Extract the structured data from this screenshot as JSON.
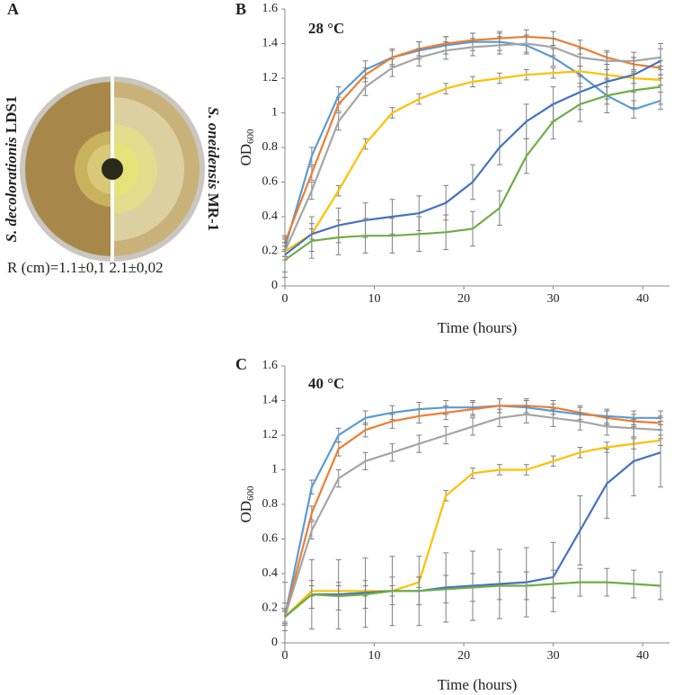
{
  "panel_a": {
    "label": "A",
    "left_species": "S. decolorationis",
    "left_strain": "LDS1",
    "right_species": "S. oneidensis",
    "right_strain": "MR-1",
    "radius_text": "R (cm)=1.1±0,1 2.1±0,02"
  },
  "chart_data": [
    {
      "type": "line",
      "panel_label": "B",
      "annotation": "28 °C",
      "xlabel": "Time (hours)",
      "ylabel": "OD",
      "ylabel_subscript": "600",
      "x": [
        0,
        3,
        6,
        9,
        12,
        15,
        18,
        21,
        24,
        27,
        30,
        33,
        36,
        39,
        42
      ],
      "xlim": [
        0,
        43
      ],
      "xticks": [
        0,
        10,
        20,
        30,
        40
      ],
      "ylim": [
        0,
        1.6
      ],
      "yticks": [
        0,
        0.2,
        0.4,
        0.6,
        0.8,
        1,
        1.2,
        1.4,
        1.6
      ],
      "error_color": "#7f7f7f",
      "series": [
        {
          "color": "#5b9bd5",
          "error": 0.05,
          "values": [
            0.22,
            0.75,
            1.1,
            1.25,
            1.32,
            1.36,
            1.39,
            1.41,
            1.41,
            1.39,
            1.32,
            1.22,
            1.1,
            1.02,
            1.07
          ]
        },
        {
          "color": "#ed7d31",
          "error": 0.04,
          "values": [
            0.25,
            0.65,
            1.05,
            1.22,
            1.32,
            1.37,
            1.4,
            1.42,
            1.43,
            1.44,
            1.43,
            1.38,
            1.32,
            1.28,
            1.26
          ]
        },
        {
          "color": "#a5a5a5",
          "error": 0.05,
          "values": [
            0.2,
            0.55,
            0.95,
            1.15,
            1.26,
            1.32,
            1.36,
            1.38,
            1.39,
            1.4,
            1.38,
            1.32,
            1.3,
            1.3,
            1.32
          ]
        },
        {
          "color": "#ffc000",
          "error": 0.03,
          "values": [
            0.2,
            0.3,
            0.55,
            0.82,
            1,
            1.08,
            1.14,
            1.18,
            1.2,
            1.22,
            1.23,
            1.24,
            1.22,
            1.2,
            1.19
          ]
        },
        {
          "color": "#4472c4",
          "error": 0.1,
          "values": [
            0.18,
            0.3,
            0.35,
            0.38,
            0.4,
            0.42,
            0.48,
            0.6,
            0.8,
            0.95,
            1.05,
            1.12,
            1.18,
            1.22,
            1.3
          ]
        },
        {
          "color": "#70ad47",
          "error": 0.1,
          "values": [
            0.15,
            0.26,
            0.28,
            0.29,
            0.29,
            0.3,
            0.31,
            0.33,
            0.45,
            0.75,
            0.95,
            1.05,
            1.1,
            1.13,
            1.15
          ]
        }
      ]
    },
    {
      "type": "line",
      "panel_label": "C",
      "annotation": "40 °C",
      "xlabel": "Time (hours)",
      "ylabel": "OD",
      "ylabel_subscript": "600",
      "x": [
        0,
        3,
        6,
        9,
        12,
        15,
        18,
        21,
        24,
        27,
        30,
        33,
        36,
        39,
        42
      ],
      "xlim": [
        0,
        43
      ],
      "xticks": [
        0,
        10,
        20,
        30,
        40
      ],
      "ylim": [
        0,
        1.6
      ],
      "yticks": [
        0,
        0.2,
        0.4,
        0.6,
        0.8,
        1,
        1.2,
        1.4,
        1.6
      ],
      "error_color": "#7f7f7f",
      "series": [
        {
          "color": "#5b9bd5",
          "error": 0.04,
          "values": [
            0.15,
            0.9,
            1.2,
            1.3,
            1.33,
            1.35,
            1.36,
            1.36,
            1.37,
            1.36,
            1.34,
            1.32,
            1.31,
            1.3,
            1.3
          ]
        },
        {
          "color": "#ed7d31",
          "error": 0.04,
          "values": [
            0.15,
            0.75,
            1.12,
            1.23,
            1.28,
            1.31,
            1.33,
            1.35,
            1.37,
            1.37,
            1.36,
            1.33,
            1.3,
            1.28,
            1.27
          ]
        },
        {
          "color": "#a5a5a5",
          "error": 0.05,
          "values": [
            0.15,
            0.65,
            0.95,
            1.05,
            1.1,
            1.15,
            1.2,
            1.25,
            1.3,
            1.32,
            1.3,
            1.28,
            1.25,
            1.24,
            1.23
          ]
        },
        {
          "color": "#ffc000",
          "error": 0.03,
          "values": [
            0.15,
            0.3,
            0.3,
            0.3,
            0.3,
            0.35,
            0.85,
            0.98,
            1,
            1,
            1.05,
            1.1,
            1.13,
            1.15,
            1.17
          ]
        },
        {
          "color": "#4472c4",
          "error": 0.2,
          "values": [
            0.15,
            0.28,
            0.28,
            0.29,
            0.3,
            0.3,
            0.32,
            0.33,
            0.34,
            0.35,
            0.38,
            0.65,
            0.92,
            1.05,
            1.1
          ]
        },
        {
          "color": "#70ad47",
          "error": 0.08,
          "values": [
            0.15,
            0.28,
            0.27,
            0.28,
            0.3,
            0.3,
            0.31,
            0.32,
            0.33,
            0.33,
            0.34,
            0.35,
            0.35,
            0.34,
            0.33
          ]
        }
      ]
    }
  ]
}
